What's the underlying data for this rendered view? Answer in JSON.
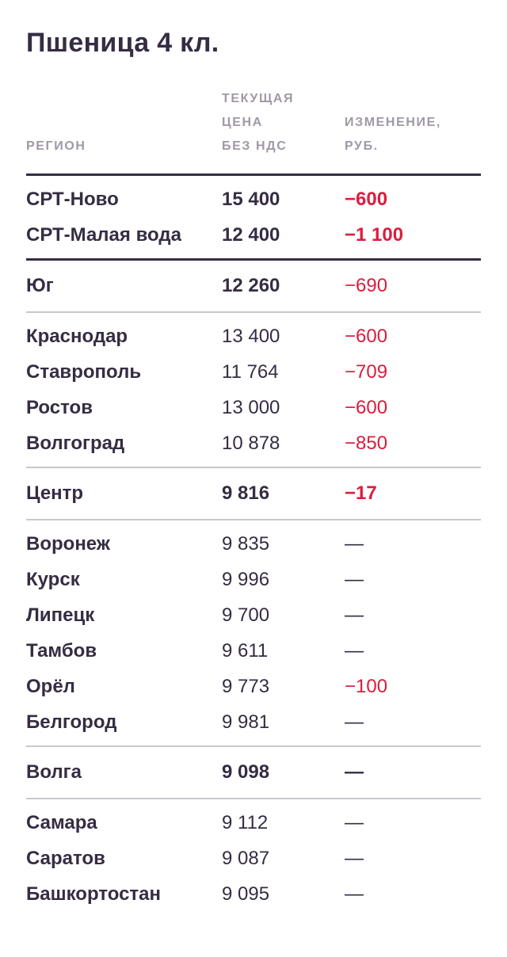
{
  "title": "Пшеница 4 кл.",
  "colors": {
    "text_dark": "#352d43",
    "muted": "#9f99a6",
    "negative_red": "#dd1c3d",
    "divider_light": "#c9c7cd"
  },
  "table": {
    "headers": {
      "region": "РЕГИОН",
      "price_lines": [
        "ТЕКУЩАЯ",
        "ЦЕНА",
        "БЕЗ НДС"
      ],
      "change_lines": [
        "ИЗМЕНЕНИЕ,",
        "РУБ."
      ]
    },
    "rows": [
      {
        "kind": "divider",
        "weight": "dark"
      },
      {
        "kind": "row",
        "region": "СРТ-Ново",
        "price": "15 400",
        "change": "−600",
        "price_bold": true,
        "change_red": true,
        "change_bold": true
      },
      {
        "kind": "row",
        "region": "СРТ-Малая вода",
        "price": "12 400",
        "change": "−1 100",
        "price_bold": true,
        "change_red": true,
        "change_bold": true
      },
      {
        "kind": "divider",
        "weight": "dark"
      },
      {
        "kind": "row",
        "region": "Юг",
        "price": "12 260",
        "change": "−690",
        "price_bold": true,
        "change_red": true,
        "summary": true
      },
      {
        "kind": "divider",
        "weight": "light"
      },
      {
        "kind": "row",
        "region": "Краснодар",
        "price": "13 400",
        "change": "−600",
        "change_red": true
      },
      {
        "kind": "row",
        "region": "Ставрополь",
        "price": "11 764",
        "change": "−709",
        "change_red": true
      },
      {
        "kind": "row",
        "region": "Ростов",
        "price": "13 000",
        "change": "−600",
        "change_red": true
      },
      {
        "kind": "row",
        "region": "Волгоград",
        "price": "10 878",
        "change": "−850",
        "change_red": true
      },
      {
        "kind": "divider",
        "weight": "light"
      },
      {
        "kind": "row",
        "region": "Центр",
        "price": "9 816",
        "change": "−17",
        "price_bold": true,
        "change_red": true,
        "change_bold": true,
        "summary": true
      },
      {
        "kind": "divider",
        "weight": "light"
      },
      {
        "kind": "row",
        "region": "Воронеж",
        "price": "9 835",
        "change": "—"
      },
      {
        "kind": "row",
        "region": "Курск",
        "price": "9 996",
        "change": "—"
      },
      {
        "kind": "row",
        "region": "Липецк",
        "price": "9 700",
        "change": "—"
      },
      {
        "kind": "row",
        "region": "Тамбов",
        "price": "9 611",
        "change": "—"
      },
      {
        "kind": "row",
        "region": "Орёл",
        "price": "9 773",
        "change": "−100",
        "change_red": true
      },
      {
        "kind": "row",
        "region": "Белгород",
        "price": "9 981",
        "change": "—"
      },
      {
        "kind": "divider",
        "weight": "light"
      },
      {
        "kind": "row",
        "region": "Волга",
        "price": "9 098",
        "change": "—",
        "price_bold": true,
        "change_bold": true,
        "summary": true
      },
      {
        "kind": "divider",
        "weight": "light"
      },
      {
        "kind": "row",
        "region": "Самара",
        "price": "9 112",
        "change": "—"
      },
      {
        "kind": "row",
        "region": "Саратов",
        "price": "9 087",
        "change": "—"
      },
      {
        "kind": "row",
        "region": "Башкортостан",
        "price": "9 095",
        "change": "—"
      }
    ]
  },
  "chart_data": {
    "type": "table",
    "title": "Пшеница 4 кл.",
    "columns": [
      "РЕГИОН",
      "ТЕКУЩАЯ ЦЕНА БЕЗ НДС",
      "ИЗМЕНЕНИЕ, РУБ."
    ],
    "rows": [
      [
        "СРТ-Ново",
        15400,
        -600
      ],
      [
        "СРТ-Малая вода",
        12400,
        -1100
      ],
      [
        "Юг",
        12260,
        -690
      ],
      [
        "Краснодар",
        13400,
        -600
      ],
      [
        "Ставрополь",
        11764,
        -709
      ],
      [
        "Ростов",
        13000,
        -600
      ],
      [
        "Волгоград",
        10878,
        -850
      ],
      [
        "Центр",
        9816,
        -17
      ],
      [
        "Воронеж",
        9835,
        null
      ],
      [
        "Курск",
        9996,
        null
      ],
      [
        "Липецк",
        9700,
        null
      ],
      [
        "Тамбов",
        9611,
        null
      ],
      [
        "Орёл",
        9773,
        -100
      ],
      [
        "Белгород",
        9981,
        null
      ],
      [
        "Волга",
        9098,
        null
      ],
      [
        "Самара",
        9112,
        null
      ],
      [
        "Саратов",
        9087,
        null
      ],
      [
        "Башкортостан",
        9095,
        null
      ]
    ]
  }
}
